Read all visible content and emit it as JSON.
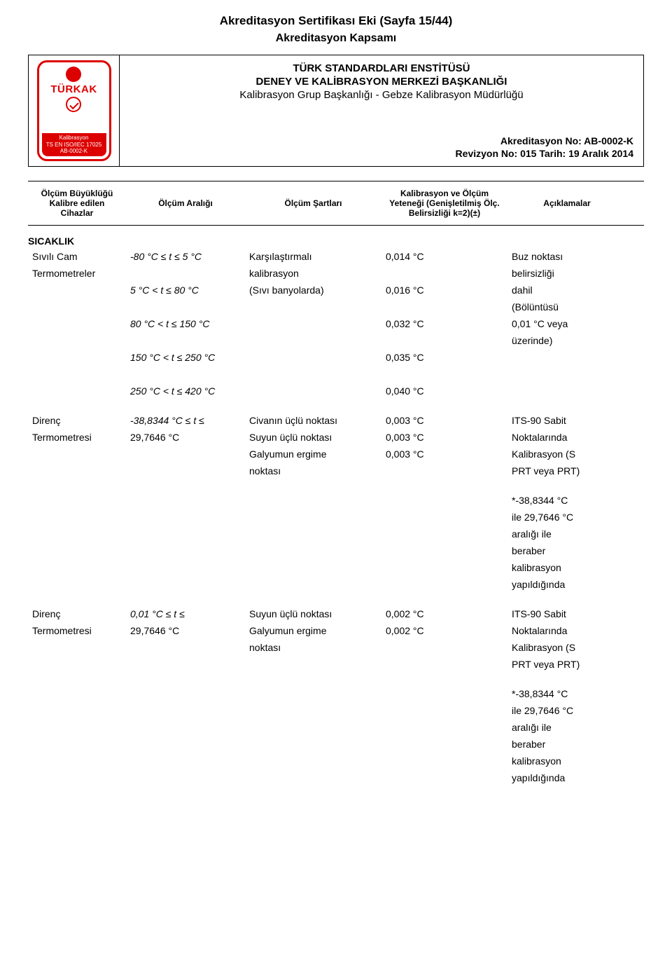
{
  "doc": {
    "title": "Akreditasyon Sertifikası Eki (Sayfa 15/44)",
    "subtitle": "Akreditasyon Kapsamı",
    "org1": "TÜRK STANDARDLARI ENSTİTÜSÜ",
    "org2": "DENEY VE KALİBRASYON MERKEZİ BAŞKANLIĞI",
    "org3": "Kalibrasyon Grup Başkanlığı - Gebze Kalibrasyon Müdürlüğü",
    "acc_no": "Akreditasyon No: AB-0002-K",
    "revision": "Revizyon No: 015 Tarih: 19 Aralık 2014"
  },
  "logo": {
    "brand": "TÜRKAK",
    "line1": "Kalibrasyon",
    "line2": "TS EN ISO/IEC 17025",
    "line3": "AB-0002-K"
  },
  "columns": {
    "c1": "Ölçüm Büyüklüğü Kalibre edilen Cihazlar",
    "c2": "Ölçüm Aralığı",
    "c3": "Ölçüm Şartları",
    "c4": "Kalibrasyon ve Ölçüm Yeteneği (Genişletilmiş Ölç. Belirsizliği k=2)(±)",
    "c5": "Açıklamalar"
  },
  "section": "SICAKLIK",
  "b1": {
    "device1": "Sıvılı Cam",
    "device2": "Termometreler",
    "r1": "-80 °C ≤ t ≤ 5 °C",
    "r2": "5 °C < t ≤ 80 °C",
    "r3": "80 °C  < t ≤ 150 °C",
    "r4": "150 °C < t ≤ 250 °C",
    "r5": "250 °C < t ≤ 420 °C",
    "cond1": "Karşılaştırmalı",
    "cond2": "kalibrasyon",
    "cond3": "(Sıvı banyolarda)",
    "u1": "0,014 °C",
    "u2": "0,016 °C",
    "u3": "0,032 °C",
    "u4": "0,035 °C",
    "u5": "0,040 °C",
    "n1": " Buz noktası",
    "n2": "belirsizliği",
    "n3": "dahil",
    "n4": "(Bölüntüsü",
    "n5": "0,01 °C veya",
    "n6": "üzerinde)"
  },
  "b2": {
    "device1": "Direnç",
    "device2": "Termometresi",
    "r1": "-38,8344 °C ≤ t ≤",
    "r2": "29,7646 °C",
    "cond1": "Civanın üçlü noktası",
    "cond2": "Suyun üçlü noktası",
    "cond3": "Galyumun ergime",
    "cond4": "noktası",
    "u1": "0,003 °C",
    "u2": "0,003 °C",
    "u3": "0,003 °C",
    "n1": "ITS-90 Sabit",
    "n2": "Noktalarında",
    "n3": "Kalibrasyon (S",
    "n4": "PRT veya PRT)"
  },
  "b3": {
    "n1": "*-38,8344 °C",
    "n2": "ile 29,7646 °C",
    "n3": "aralığı ile",
    "n4": "beraber",
    "n5": "kalibrasyon",
    "n6": "yapıldığında"
  },
  "b4": {
    "device1": "Direnç",
    "device2": "Termometresi",
    "r1": "0,01 °C ≤ t ≤",
    "r2": "29,7646 °C",
    "cond1": "Suyun üçlü noktası",
    "cond2": "Galyumun ergime",
    "cond3": "noktası",
    "u1": "0,002 °C",
    "u2": "0,002 °C",
    "n1": "ITS-90 Sabit",
    "n2": "Noktalarında",
    "n3": "Kalibrasyon (S",
    "n4": "PRT veya PRT)"
  },
  "b5": {
    "n1": "*-38,8344 °C",
    "n2": "ile 29,7646 °C",
    "n3": "aralığı ile",
    "n4": "beraber",
    "n5": "kalibrasyon",
    "n6": "yapıldığında"
  }
}
